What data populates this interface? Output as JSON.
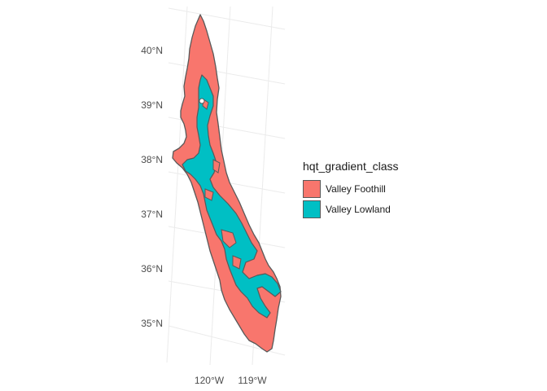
{
  "map": {
    "type": "choropleth",
    "legend_position": "right",
    "grid": true,
    "lat_labels": [
      "40°N",
      "39°N",
      "38°N",
      "37°N",
      "36°N",
      "35°N"
    ],
    "lon_labels": [
      "120°W",
      "119°W"
    ],
    "legend": {
      "title": "hqt_gradient_class",
      "items": [
        {
          "label": "Valley Foothill",
          "color": "#F8766D"
        },
        {
          "label": "Valley Lowland",
          "color": "#00BFC4"
        }
      ]
    },
    "colors": {
      "grid": "#ebebeb",
      "outline": "#595959"
    }
  }
}
